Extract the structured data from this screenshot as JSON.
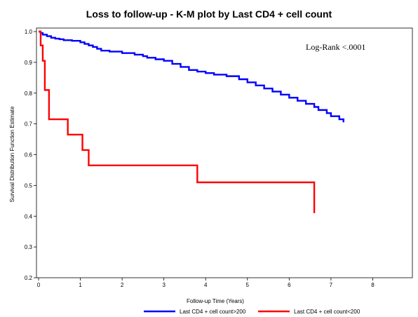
{
  "chart_data": {
    "type": "line",
    "title": "Loss to follow-up - K-M plot by Last CD4 + cell count",
    "xlabel": "Follow-up Time (Years)",
    "ylabel": "Survival Distribution Function Estimate",
    "xlim": [
      0,
      9
    ],
    "ylim": [
      0.2,
      1.0
    ],
    "xticks": [
      "0",
      "1",
      "2",
      "3",
      "4",
      "5",
      "6",
      "7",
      "8"
    ],
    "yticks": [
      "0.2",
      "0.3",
      "0.4",
      "0.5",
      "0.6",
      "0.7",
      "0.8",
      "0.9",
      "1.0"
    ],
    "grid": false,
    "legend_position": "bottom",
    "annotation": "Log-Rank <.0001",
    "series": [
      {
        "name": "Last CD4 + cell count>200",
        "color": "#0000ff",
        "x": [
          0,
          0.05,
          0.1,
          0.2,
          0.3,
          0.4,
          0.5,
          0.6,
          0.8,
          1.0,
          1.1,
          1.2,
          1.3,
          1.4,
          1.5,
          1.7,
          2.0,
          2.3,
          2.5,
          2.6,
          2.8,
          3.0,
          3.2,
          3.4,
          3.6,
          3.8,
          4.0,
          4.2,
          4.5,
          4.8,
          5.0,
          5.2,
          5.4,
          5.6,
          5.8,
          6.0,
          6.2,
          6.4,
          6.6,
          6.7,
          6.9,
          7.0,
          7.2,
          7.3
        ],
        "y": [
          1.0,
          0.995,
          0.99,
          0.985,
          0.98,
          0.977,
          0.975,
          0.972,
          0.97,
          0.965,
          0.96,
          0.955,
          0.95,
          0.944,
          0.938,
          0.935,
          0.93,
          0.925,
          0.92,
          0.915,
          0.91,
          0.905,
          0.895,
          0.885,
          0.875,
          0.87,
          0.865,
          0.86,
          0.855,
          0.845,
          0.835,
          0.825,
          0.815,
          0.805,
          0.795,
          0.785,
          0.775,
          0.765,
          0.755,
          0.745,
          0.735,
          0.725,
          0.715,
          0.705
        ]
      },
      {
        "name": "Last CD4 + cell count<200",
        "color": "#ff0000",
        "x": [
          0,
          0.05,
          0.1,
          0.15,
          0.25,
          0.7,
          1.05,
          1.2,
          3.8,
          6.6
        ],
        "y": [
          1.0,
          0.955,
          0.905,
          0.81,
          0.715,
          0.665,
          0.615,
          0.565,
          0.51,
          0.41
        ]
      }
    ]
  }
}
